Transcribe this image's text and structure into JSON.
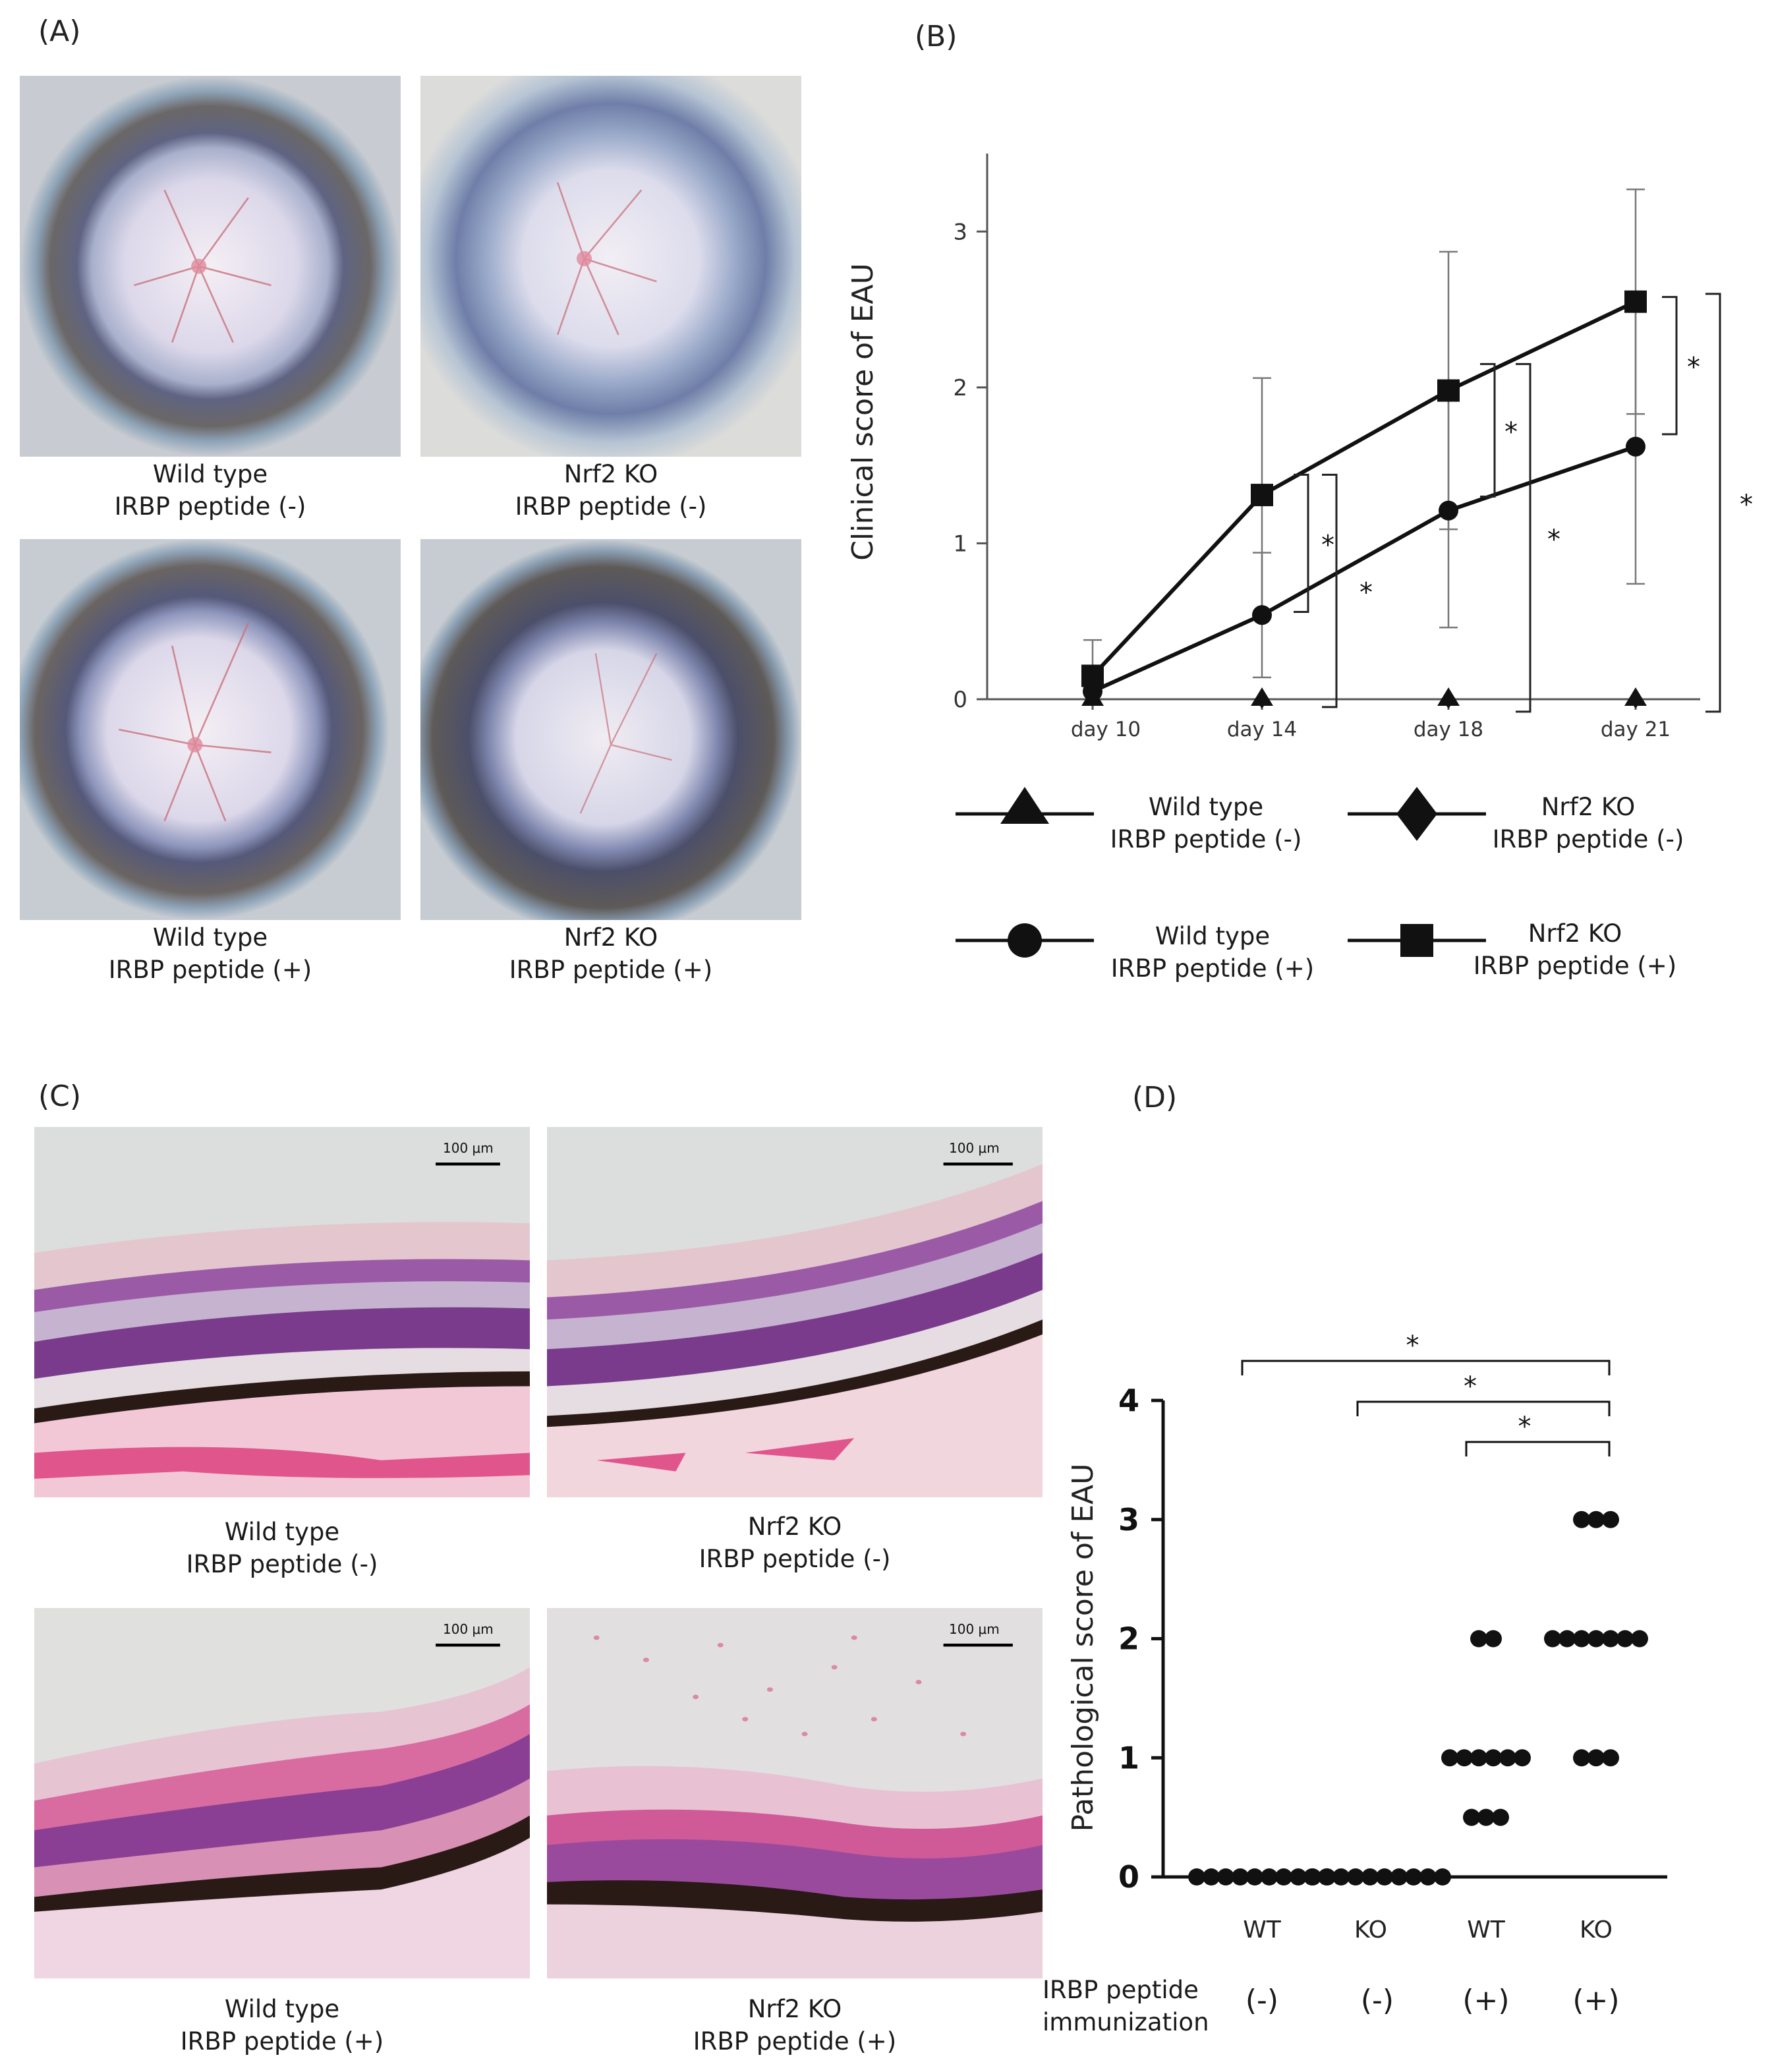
{
  "panels": {
    "A": {
      "label": "(A)",
      "images": [
        {
          "line1": "Wild type",
          "line2": "IRBP peptide (-)"
        },
        {
          "line1": "Nrf2 KO",
          "line2": "IRBP peptide (-)"
        },
        {
          "line1": "Wild type",
          "line2": "IRBP peptide (+)"
        },
        {
          "line1": "Nrf2 KO",
          "line2": "IRBP peptide (+)"
        }
      ]
    },
    "B": {
      "label": "(B)",
      "significance_marker": "*",
      "legend": [
        {
          "line1": "Wild type",
          "line2": "IRBP peptide (-)",
          "marker": "triangle"
        },
        {
          "line1": "Nrf2 KO",
          "line2": "IRBP peptide (-)",
          "marker": "diamond"
        },
        {
          "line1": "Wild type",
          "line2": "IRBP peptide (+)",
          "marker": "circle"
        },
        {
          "line1": "Nrf2 KO",
          "line2": "IRBP peptide (+)",
          "marker": "square"
        }
      ]
    },
    "C": {
      "label": "(C)",
      "scale_bar": "100 μm",
      "images": [
        {
          "line1": "Wild type",
          "line2": "IRBP peptide (-)"
        },
        {
          "line1": "Nrf2 KO",
          "line2": "IRBP peptide (-)"
        },
        {
          "line1": "Wild type",
          "line2": "IRBP peptide (+)"
        },
        {
          "line1": "Nrf2 KO",
          "line2": "IRBP peptide (+)"
        }
      ]
    },
    "D": {
      "label": "(D)",
      "significance_marker": "*",
      "row_label_line1": "IRBP peptide",
      "row_label_line2": "immunization",
      "immunization": [
        "(-)",
        "(-)",
        "(+)",
        "(+)"
      ]
    }
  },
  "chart_data": [
    {
      "type": "line",
      "title": "",
      "xlabel": "",
      "ylabel": "Clinical score of EAU",
      "categories": [
        "day 10",
        "day 14",
        "day 18",
        "day 21"
      ],
      "ylim": [
        0,
        3.5
      ],
      "yticks": [
        0,
        1,
        2,
        3
      ],
      "series": [
        {
          "name": "Wild type IRBP peptide (-)",
          "marker": "triangle",
          "values": [
            0,
            0,
            0,
            0
          ],
          "error": [
            0,
            0,
            0,
            0
          ]
        },
        {
          "name": "Nrf2 KO IRBP peptide (-)",
          "marker": "diamond",
          "values": [
            0,
            0,
            0,
            0
          ],
          "error": [
            0,
            0,
            0,
            0
          ]
        },
        {
          "name": "Wild type IRBP peptide (+)",
          "marker": "circle",
          "values": [
            0.05,
            0.54,
            1.21,
            1.62
          ],
          "error": [
            0.05,
            0.4,
            0.75,
            0.88
          ]
        },
        {
          "name": "Nrf2 KO IRBP peptide (+)",
          "marker": "square",
          "values": [
            0.15,
            1.31,
            1.98,
            2.55
          ],
          "error": [
            0.23,
            0.75,
            0.89,
            0.72
          ]
        }
      ],
      "significance": [
        {
          "x": "day 14",
          "marker": "*"
        },
        {
          "x": "day 18",
          "marker": "*"
        },
        {
          "x": "day 21",
          "marker": "*"
        }
      ],
      "grid": false,
      "legend_position": "bottom"
    },
    {
      "type": "scatter",
      "title": "",
      "xlabel": "",
      "ylabel": "Pathological score of EAU",
      "categories": [
        "WT",
        "KO",
        "WT",
        "KO"
      ],
      "ylim": [
        0,
        4
      ],
      "yticks": [
        0,
        1,
        2,
        3,
        4
      ],
      "groups": [
        {
          "name": "WT",
          "immunization": "(-)",
          "values": [
            0,
            0,
            0,
            0,
            0,
            0,
            0,
            0,
            0,
            0
          ]
        },
        {
          "name": "KO",
          "immunization": "(-)",
          "values": [
            0,
            0,
            0,
            0,
            0,
            0,
            0,
            0,
            0,
            0
          ]
        },
        {
          "name": "WT",
          "immunization": "(+)",
          "values": [
            2,
            2,
            1,
            1,
            1,
            1,
            1,
            1,
            0.5,
            0.5,
            0.5
          ]
        },
        {
          "name": "KO",
          "immunization": "(+)",
          "values": [
            3,
            3,
            3,
            2,
            2,
            2,
            2,
            2,
            2,
            2,
            1,
            1,
            1
          ]
        }
      ],
      "comparisons": [
        {
          "from": 0,
          "to": 3,
          "marker": "*"
        },
        {
          "from": 1,
          "to": 3,
          "marker": "*"
        },
        {
          "from": 2,
          "to": 3,
          "marker": "*"
        }
      ],
      "grid": false
    }
  ]
}
